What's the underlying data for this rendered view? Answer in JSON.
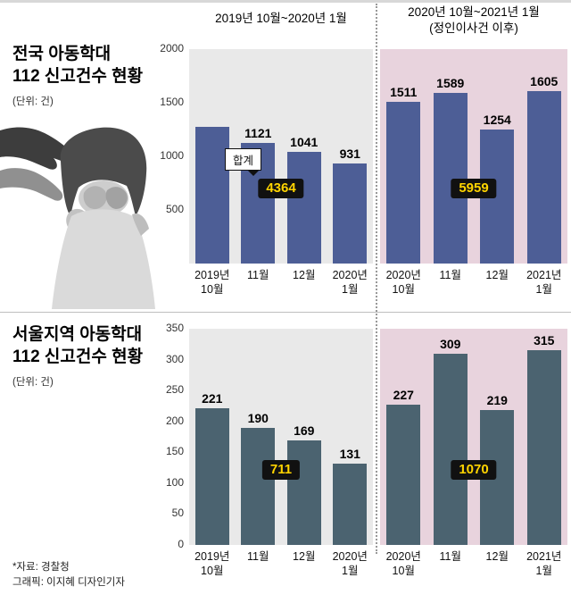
{
  "header": {
    "period_left": "2019년 10월~2020년 1월",
    "period_right_line1": "2020년 10월~2021년 1월",
    "period_right_line2": "(정인이사건 이후)"
  },
  "footer": {
    "source": "*자료: 경찰청",
    "credit": "그래픽: 이지혜 디자인기자"
  },
  "colors": {
    "panel_gray": "#e9e9e9",
    "panel_pink": "#e8d3dd",
    "bar_navy": "#4d5e96",
    "bar_teal": "#4b6370",
    "badge_bg": "#111111",
    "badge_text": "#ffd400",
    "divider_dotted": "#999999"
  },
  "chart_data": [
    {
      "type": "bar",
      "title_line1": "전국 아동학대",
      "title_line2": "112 신고건수 현황",
      "unit": "(단위: 건)",
      "ylim": [
        0,
        2000
      ],
      "ytick_values": [
        2000,
        1500,
        1000,
        500
      ],
      "ytick_labels": [
        "2000",
        "1500",
        "1000",
        "500"
      ],
      "grid": false,
      "bar_color": "#4d5e96",
      "groups": [
        {
          "period": "2019년 10월~2020년 1월",
          "categories": [
            [
              "2019년",
              "10월"
            ],
            [
              "11월"
            ],
            [
              "12월"
            ],
            [
              "2020년",
              "1월"
            ]
          ],
          "values": [
            1271,
            1121,
            1041,
            931
          ],
          "bar_labels": [
            "",
            "1121",
            "1041",
            "931"
          ],
          "total": "4364",
          "callout_label": "합계"
        },
        {
          "period": "2020년 10월~2021년 1월 (정인이사건 이후)",
          "categories": [
            [
              "2020년",
              "10월"
            ],
            [
              "11월"
            ],
            [
              "12월"
            ],
            [
              "2021년",
              "1월"
            ]
          ],
          "values": [
            1511,
            1589,
            1254,
            1605
          ],
          "bar_labels": [
            "1511",
            "1589",
            "1254",
            "1605"
          ],
          "total": "5959"
        }
      ]
    },
    {
      "type": "bar",
      "title_line1": "서울지역 아동학대",
      "title_line2": "112 신고건수 현황",
      "unit": "(단위: 건)",
      "ylim": [
        0,
        350
      ],
      "ytick_values": [
        350,
        300,
        250,
        200,
        150,
        100,
        50,
        0
      ],
      "ytick_labels": [
        "350",
        "300",
        "250",
        "200",
        "150",
        "100",
        "50",
        "0"
      ],
      "grid": false,
      "bar_color": "#4b6370",
      "groups": [
        {
          "period": "2019년 10월~2020년 1월",
          "categories": [
            [
              "2019년",
              "10월"
            ],
            [
              "11월"
            ],
            [
              "12월"
            ],
            [
              "2020년",
              "1월"
            ]
          ],
          "values": [
            221,
            190,
            169,
            131
          ],
          "bar_labels": [
            "221",
            "190",
            "169",
            "131"
          ],
          "total": "711"
        },
        {
          "period": "2020년 10월~2021년 1월 (정인이사건 이후)",
          "categories": [
            [
              "2020년",
              "10월"
            ],
            [
              "11월"
            ],
            [
              "12월"
            ],
            [
              "2021년",
              "1월"
            ]
          ],
          "values": [
            227,
            309,
            219,
            315
          ],
          "bar_labels": [
            "227",
            "309",
            "219",
            "315"
          ],
          "total": "1070"
        }
      ]
    }
  ]
}
